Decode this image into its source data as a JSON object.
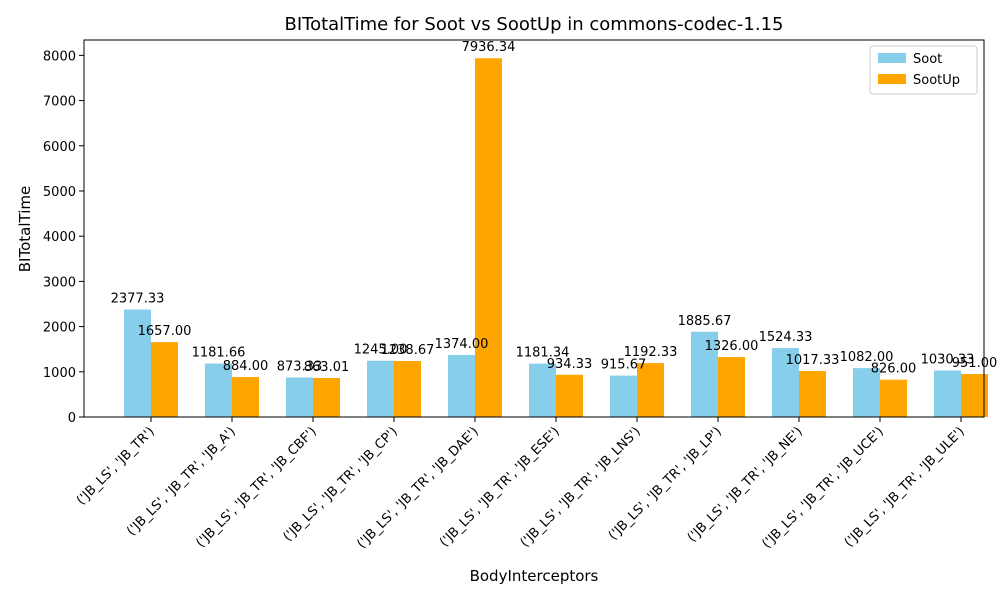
{
  "chart_data": {
    "type": "bar",
    "title": "BITotalTime for Soot vs SootUp in commons-codec-1.15",
    "xlabel": "BodyInterceptors",
    "ylabel": "BITotalTime",
    "ylim": [
      0,
      8340
    ],
    "yticks": [
      0,
      1000,
      2000,
      3000,
      4000,
      5000,
      6000,
      7000,
      8000
    ],
    "grid": false,
    "legend_position": "top-right",
    "categories": [
      "('JB_LS', 'JB_TR')",
      "('JB_LS', 'JB_TR', 'JB_A')",
      "('JB_LS', 'JB_TR', 'JB_CBF')",
      "('JB_LS', 'JB_TR', 'JB_CP')",
      "('JB_LS', 'JB_TR', 'JB_DAE')",
      "('JB_LS', 'JB_TR', 'JB_ESE')",
      "('JB_LS', 'JB_TR', 'JB_LNS')",
      "('JB_LS', 'JB_TR', 'JB_LP')",
      "('JB_LS', 'JB_TR', 'JB_NE')",
      "('JB_LS', 'JB_TR', 'JB_UCE')",
      "('JB_LS', 'JB_TR', 'JB_ULE')"
    ],
    "series": [
      {
        "name": "Soot",
        "color": "#87ceeb",
        "values": [
          2377.33,
          1181.66,
          873.33,
          1245.0,
          1374.0,
          1181.34,
          915.67,
          1885.67,
          1524.33,
          1082.0,
          1030.33
        ],
        "labels": [
          "2377.33",
          "1181.66",
          "873.33",
          "1245.00",
          "1374.00",
          "1181.34",
          "915.67",
          "1885.67",
          "1524.33",
          "1082.00",
          "1030.33"
        ]
      },
      {
        "name": "SootUp",
        "color": "#ffa500",
        "values": [
          1657.0,
          884.0,
          863.01,
          1238.67,
          7936.34,
          934.33,
          1192.33,
          1326.0,
          1017.33,
          826.0,
          951.0
        ],
        "labels": [
          "1657.00",
          "884.00",
          "863.01",
          "1238.67",
          "7936.34",
          "934.33",
          "1192.33",
          "1326.00",
          "1017.33",
          "826.00",
          "951.00"
        ]
      }
    ]
  }
}
